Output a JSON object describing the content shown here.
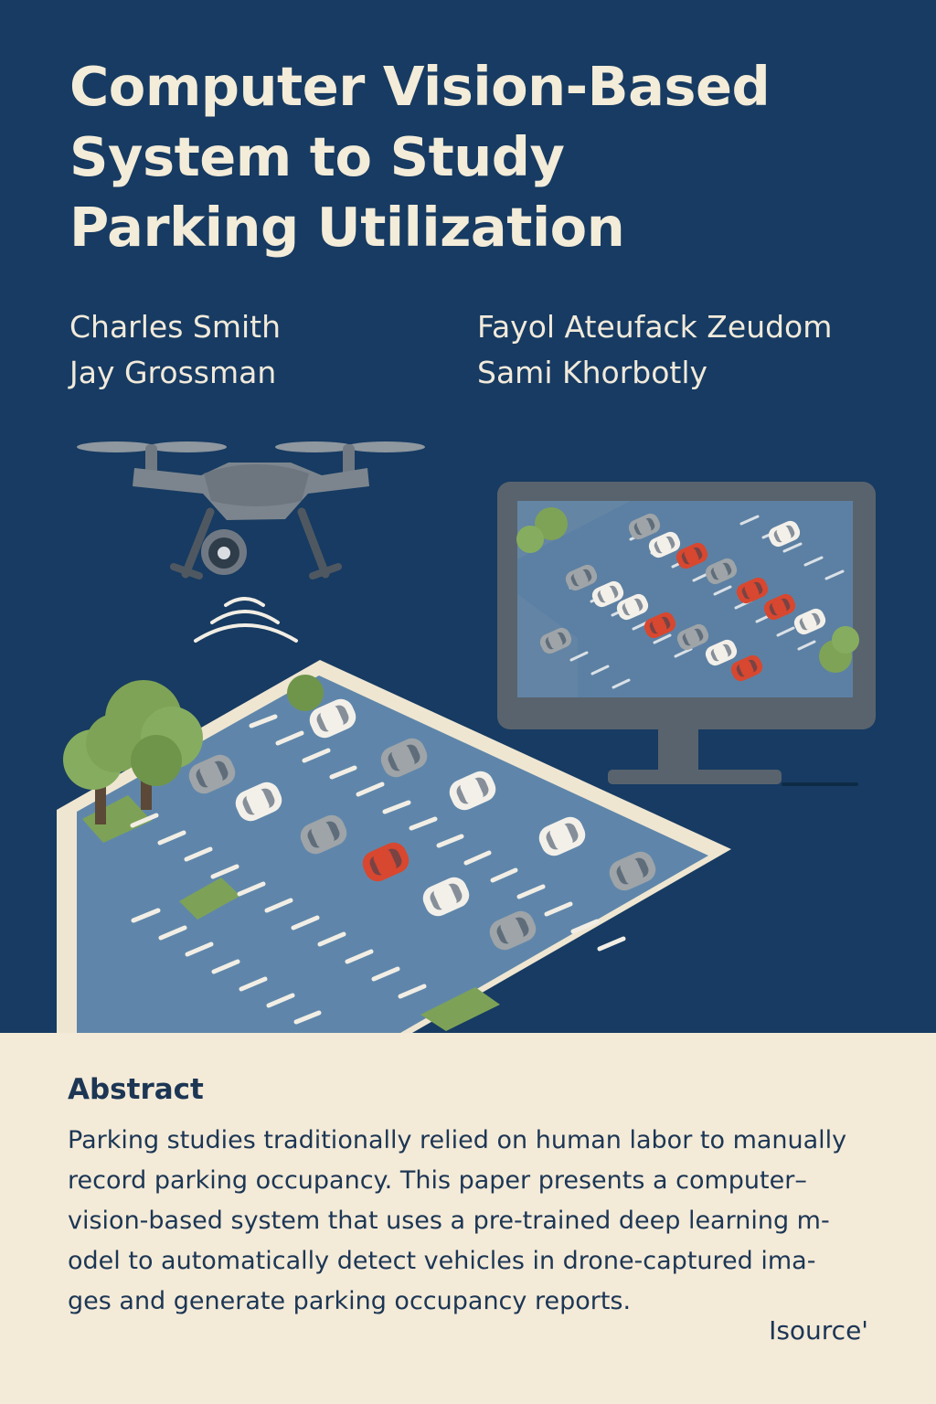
{
  "title": {
    "lines": [
      "Computer Vision-Based",
      "System to Study",
      "Parking Utilization"
    ]
  },
  "authors": [
    "Charles Smith",
    "Fayol Ateufack Zeudom",
    "Jay Grossman",
    "Sami Khorbotly"
  ],
  "abstract": {
    "heading": "Abstract",
    "lines": [
      "Parking studies traditionally relied on human labor to manually",
      "record parking occupancy. This paper presents a computer–",
      "vision-based system that uses a pre-trained deep learning m-",
      "odel to automatically detect vehicles in drone-captured ima-",
      "ges and generate parking occupancy reports."
    ]
  },
  "source_mark": "Isource'",
  "illustration": {
    "icons": [
      "drone-icon",
      "wireless-signal-icon",
      "monitor-icon",
      "tree-icon",
      "car-icon"
    ],
    "colors": {
      "background": "#173b62",
      "lot_asphalt": "#5e84a8",
      "lot_border": "#efe6d2",
      "grass": "#7da257",
      "car_red": "#d8472f",
      "car_white": "#f3f0ea",
      "car_gray": "#9ea4a8"
    }
  }
}
